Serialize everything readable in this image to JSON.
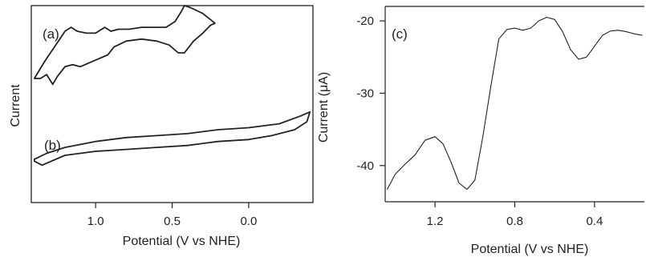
{
  "chart_data": [
    {
      "type": "line",
      "panel_labels": [
        "(a)",
        "(b)"
      ],
      "xlabel": "Potential (V vs NHE)",
      "ylabel": "Current",
      "x_direction": "reversed",
      "xlim": [
        1.42,
        -0.42
      ],
      "xticks": [
        {
          "value": 1.0,
          "label": "1.0"
        },
        {
          "value": 0.5,
          "label": "0.5"
        },
        {
          "value": 0.0,
          "label": "0.0"
        }
      ],
      "y_units": "arbitrary",
      "ylim": [
        0,
        100
      ],
      "series": [
        {
          "panel": "(a)",
          "x": [
            1.4,
            1.33,
            1.26,
            1.2,
            1.16,
            1.12,
            1.06,
            1.0,
            0.94,
            0.9,
            0.85,
            0.78,
            0.7,
            0.62,
            0.54,
            0.48,
            0.44,
            0.42,
            0.38,
            0.3,
            0.22,
            0.25,
            0.3,
            0.36,
            0.39,
            0.42,
            0.46,
            0.52,
            0.6,
            0.7,
            0.8,
            0.88,
            0.92,
            0.98,
            1.04,
            1.1,
            1.15,
            1.2,
            1.25,
            1.28,
            1.32,
            1.36,
            1.4
          ],
          "y": [
            63,
            72,
            80,
            87,
            89,
            87,
            86,
            86,
            89,
            87,
            88,
            88,
            89,
            89,
            89,
            92,
            97,
            100,
            99,
            96,
            91,
            90,
            86,
            82,
            79,
            76,
            76,
            80,
            82,
            83,
            82,
            79,
            75,
            73,
            71,
            69,
            70,
            69,
            64,
            60,
            65,
            63,
            63
          ]
        },
        {
          "panel": "(b)",
          "x": [
            1.4,
            1.32,
            1.2,
            1.0,
            0.8,
            0.6,
            0.4,
            0.2,
            0.0,
            -0.2,
            -0.34,
            -0.4,
            -0.38,
            -0.3,
            -0.15,
            0.0,
            0.2,
            0.4,
            0.6,
            0.8,
            1.0,
            1.2,
            1.35,
            1.4
          ],
          "y": [
            22,
            25,
            28,
            31,
            33,
            34,
            35,
            37,
            38,
            40,
            44,
            46,
            41,
            37,
            34,
            32,
            31,
            29,
            28,
            27,
            26,
            24,
            19,
            21
          ]
        }
      ]
    },
    {
      "type": "line",
      "panel_labels": [
        "(c)"
      ],
      "xlabel": "Potential (V vs NHE)",
      "ylabel": "Current (μA)",
      "x_direction": "reversed",
      "xlim": [
        1.45,
        0.15
      ],
      "ylim": [
        -45,
        -18
      ],
      "xticks": [
        {
          "value": 1.2,
          "label": "1.2"
        },
        {
          "value": 0.8,
          "label": "0.8"
        },
        {
          "value": 0.4,
          "label": "0.4"
        }
      ],
      "yticks": [
        {
          "value": -20,
          "label": "-20"
        },
        {
          "value": -30,
          "label": "-30"
        },
        {
          "value": -40,
          "label": "-40"
        }
      ],
      "series": [
        {
          "x": [
            1.44,
            1.4,
            1.35,
            1.3,
            1.25,
            1.2,
            1.16,
            1.12,
            1.08,
            1.04,
            1.0,
            0.96,
            0.92,
            0.88,
            0.84,
            0.8,
            0.76,
            0.72,
            0.68,
            0.64,
            0.6,
            0.56,
            0.52,
            0.48,
            0.44,
            0.4,
            0.36,
            0.32,
            0.28,
            0.24,
            0.2,
            0.16
          ],
          "y": [
            -43.3,
            -41.2,
            -39.8,
            -38.5,
            -36.5,
            -36.0,
            -37.0,
            -39.5,
            -42.4,
            -43.3,
            -42.0,
            -36.0,
            -29.0,
            -22.5,
            -21.2,
            -21.0,
            -21.3,
            -21.0,
            -20.0,
            -19.5,
            -19.8,
            -21.5,
            -24.0,
            -25.3,
            -25.0,
            -23.5,
            -22.0,
            -21.4,
            -21.3,
            -21.5,
            -21.8,
            -22.0
          ]
        }
      ]
    }
  ]
}
